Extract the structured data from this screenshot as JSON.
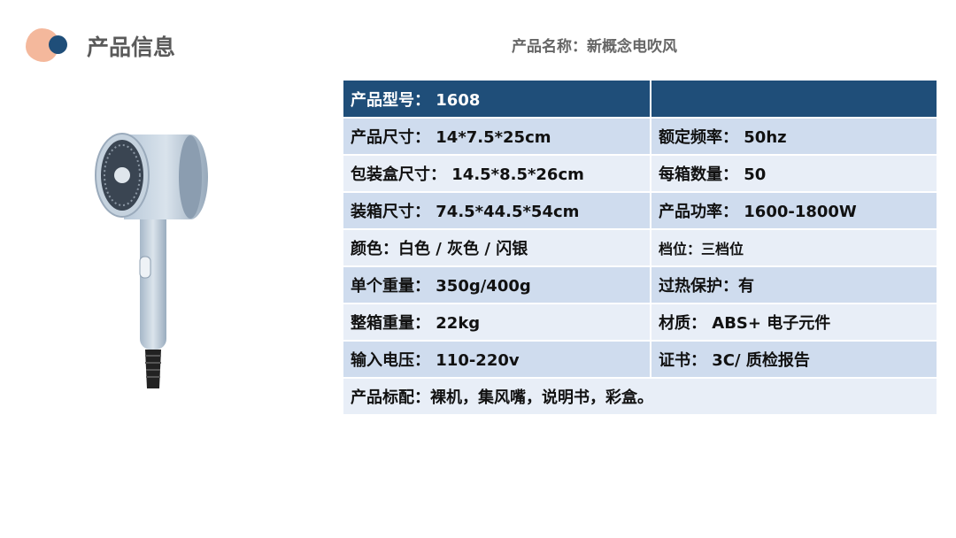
{
  "header": {
    "title": "产品信息",
    "product_name": "产品名称：新概念电吹风"
  },
  "colors": {
    "header_row": "#1f4e79",
    "row_odd": "#cfdcee",
    "row_even": "#e8eef7",
    "logo_peach": "#f4b89c",
    "logo_blue": "#1f4e79"
  },
  "table": {
    "model": "产品型号： 1608",
    "rows": [
      [
        "产品尺寸： 14*7.5*25cm",
        "额定频率： 50hz"
      ],
      [
        "包装盒尺寸： 14.5*8.5*26cm",
        "每箱数量： 50"
      ],
      [
        "装箱尺寸： 74.5*44.5*54cm",
        "产品功率： 1600-1800W"
      ],
      [
        "颜色：白色 / 灰色 / 闪银",
        "档位：三档位"
      ],
      [
        "单个重量： 350g/400g",
        "过热保护：有"
      ],
      [
        "整箱重量： 22kg",
        "材质： ABS+ 电子元件"
      ],
      [
        "输入电压： 110-220v",
        "证书： 3C/ 质检报告"
      ]
    ],
    "accessories": "产品标配：裸机，集风嘴，说明书，彩盒。"
  }
}
